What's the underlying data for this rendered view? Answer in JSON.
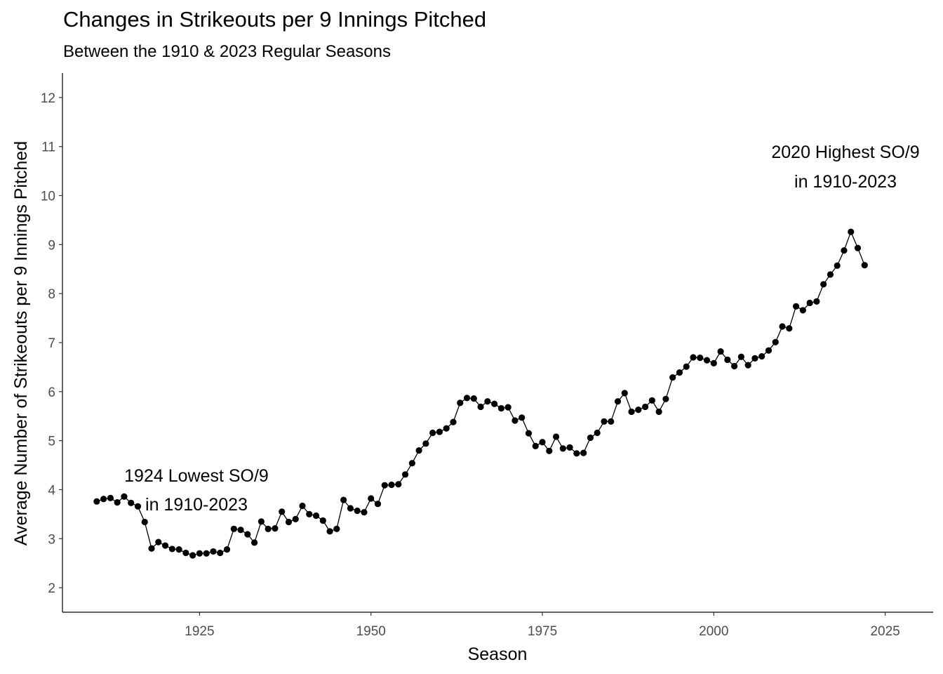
{
  "chart_data": {
    "type": "line",
    "title": "Changes in Strikeouts per 9 Innings Pitched",
    "subtitle": "Between the 1910 & 2023 Regular Seasons",
    "xlabel": "Season",
    "ylabel": "Average Number of Strikeouts per 9 Innings Pitched",
    "xlim": [
      1905,
      2032
    ],
    "ylim": [
      1.5,
      12.5
    ],
    "x_ticks": [
      1925,
      1950,
      1975,
      2000,
      2025
    ],
    "y_ticks": [
      2,
      3,
      4,
      5,
      6,
      7,
      8,
      9,
      10,
      11,
      12
    ],
    "grid": false,
    "series": [
      {
        "x": [
          1910,
          1911,
          1912,
          1913,
          1914,
          1915,
          1916,
          1917,
          1918,
          1919,
          1920,
          1921,
          1922,
          1923,
          1924,
          1925,
          1926,
          1927,
          1928,
          1929,
          1930,
          1931,
          1932,
          1933,
          1934,
          1935,
          1936,
          1937,
          1938,
          1939,
          1940,
          1941,
          1942,
          1943,
          1944,
          1945,
          1946,
          1947,
          1948,
          1949,
          1950,
          1951,
          1952,
          1953,
          1954,
          1955,
          1956,
          1957,
          1958,
          1959,
          1960,
          1961,
          1962,
          1963,
          1964,
          1965,
          1966,
          1967,
          1968,
          1969,
          1970,
          1971,
          1972,
          1973,
          1974,
          1975,
          1976,
          1977,
          1978,
          1979,
          1980,
          1981,
          1982,
          1983,
          1984,
          1985,
          1986,
          1987,
          1988,
          1989,
          1990,
          1991,
          1992,
          1993,
          1994,
          1995,
          1996,
          1997,
          1998,
          1999,
          2000,
          2001,
          2002,
          2003,
          2004,
          2005,
          2006,
          2007,
          2008,
          2009,
          2010,
          2011,
          2012,
          2013,
          2014,
          2015,
          2016,
          2017,
          2018,
          2019,
          2020,
          2021,
          2022
        ],
        "values": [
          3.76,
          3.81,
          3.83,
          3.74,
          3.86,
          3.73,
          3.66,
          3.34,
          2.8,
          2.93,
          2.86,
          2.79,
          2.78,
          2.71,
          2.66,
          2.7,
          2.7,
          2.74,
          2.71,
          2.78,
          3.2,
          3.18,
          3.09,
          2.92,
          3.35,
          3.2,
          3.21,
          3.55,
          3.34,
          3.4,
          3.67,
          3.5,
          3.47,
          3.37,
          3.15,
          3.2,
          3.79,
          3.62,
          3.57,
          3.54,
          3.82,
          3.71,
          4.09,
          4.1,
          4.11,
          4.31,
          4.54,
          4.8,
          4.94,
          5.16,
          5.18,
          5.25,
          5.38,
          5.77,
          5.87,
          5.86,
          5.69,
          5.8,
          5.75,
          5.66,
          5.68,
          5.41,
          5.47,
          5.15,
          4.89,
          4.97,
          4.79,
          5.08,
          4.84,
          4.86,
          4.74,
          4.75,
          5.06,
          5.16,
          5.39,
          5.39,
          5.8,
          5.97,
          5.59,
          5.63,
          5.69,
          5.82,
          5.59,
          5.85,
          6.29,
          6.39,
          6.51,
          6.7,
          6.69,
          6.64,
          6.58,
          6.82,
          6.65,
          6.52,
          6.71,
          6.54,
          6.68,
          6.72,
          6.84,
          7.01,
          7.33,
          7.29,
          7.74,
          7.66,
          7.81,
          7.84,
          8.19,
          8.39,
          8.57,
          8.88,
          9.26,
          8.93,
          8.58
        ]
      }
    ],
    "annotations": [
      {
        "lines": [
          "1924 Lowest SO/9",
          "in 1910-2023"
        ]
      },
      {
        "lines": [
          "2020 Highest SO/9",
          "in 1910-2023"
        ]
      }
    ]
  }
}
